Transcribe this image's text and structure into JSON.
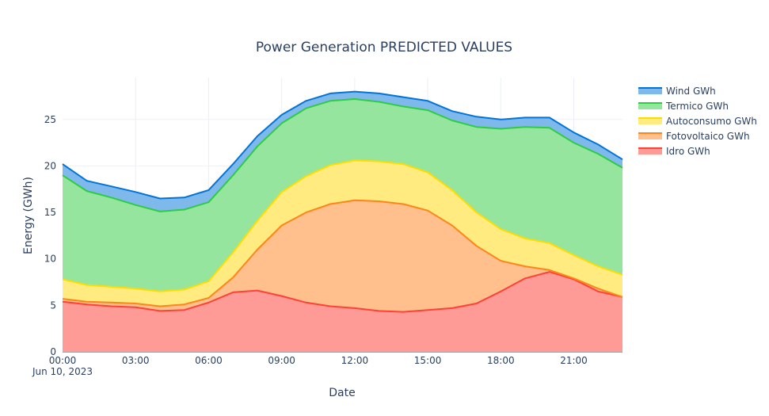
{
  "chart_data": {
    "type": "area",
    "stacked": true,
    "title": "Power Generation PREDICTED VALUES",
    "xlabel": "Date",
    "ylabel": "Energy (GWh)",
    "x_date_label": "Jun 10, 2023",
    "x": [
      0,
      1,
      2,
      3,
      4,
      5,
      6,
      7,
      8,
      9,
      10,
      11,
      12,
      13,
      14,
      15,
      16,
      17,
      18,
      19,
      20,
      21,
      22,
      23
    ],
    "x_ticks": [
      {
        "hour": 0,
        "label": "00:00"
      },
      {
        "hour": 3,
        "label": "03:00"
      },
      {
        "hour": 6,
        "label": "06:00"
      },
      {
        "hour": 9,
        "label": "09:00"
      },
      {
        "hour": 12,
        "label": "12:00"
      },
      {
        "hour": 15,
        "label": "15:00"
      },
      {
        "hour": 18,
        "label": "18:00"
      },
      {
        "hour": 21,
        "label": "21:00"
      }
    ],
    "ylim": [
      0,
      29.5
    ],
    "y_ticks": [
      0,
      5,
      10,
      15,
      20,
      25
    ],
    "grid": true,
    "legend_position": "top-right",
    "series": [
      {
        "name": "Idro GWh",
        "line_color": "#ff4136",
        "fill_color": "#ff9b96",
        "values": [
          5.4,
          5.1,
          4.9,
          4.8,
          4.4,
          4.5,
          5.3,
          6.4,
          6.6,
          6.0,
          5.3,
          4.9,
          4.7,
          4.4,
          4.3,
          4.5,
          4.7,
          5.2,
          6.5,
          7.9,
          8.6,
          7.8,
          6.5,
          5.9
        ]
      },
      {
        "name": "Fotovoltaico GWh",
        "line_color": "#ff851b",
        "fill_color": "#ffc08d",
        "values": [
          0.3,
          0.3,
          0.4,
          0.4,
          0.5,
          0.6,
          0.5,
          1.6,
          4.4,
          7.6,
          9.7,
          11.0,
          11.6,
          11.8,
          11.6,
          10.7,
          8.9,
          6.2,
          3.3,
          1.3,
          0.2,
          0.1,
          0.3,
          0.0
        ]
      },
      {
        "name": "Autoconsumo GWh",
        "line_color": "#ffdc00",
        "fill_color": "#ffeb7f",
        "values": [
          2.1,
          1.8,
          1.7,
          1.6,
          1.6,
          1.6,
          1.8,
          2.7,
          3.1,
          3.6,
          3.9,
          4.2,
          4.3,
          4.3,
          4.3,
          4.1,
          3.8,
          3.6,
          3.4,
          3.0,
          2.9,
          2.5,
          2.4,
          2.4
        ]
      },
      {
        "name": "Termico GWh",
        "line_color": "#2ecc40",
        "fill_color": "#96e59f",
        "values": [
          11.2,
          10.1,
          9.6,
          9.0,
          8.6,
          8.6,
          8.5,
          8.3,
          8.0,
          7.4,
          7.3,
          6.9,
          6.6,
          6.4,
          6.2,
          6.7,
          7.5,
          9.2,
          10.8,
          12.0,
          12.4,
          12.1,
          12.1,
          11.5
        ]
      },
      {
        "name": "Wind GWh",
        "line_color": "#0074d9",
        "fill_color": "#7fb9ec",
        "values": [
          1.2,
          1.1,
          1.2,
          1.4,
          1.4,
          1.3,
          1.3,
          1.2,
          1.1,
          0.9,
          0.8,
          0.8,
          0.8,
          0.9,
          1.0,
          1.0,
          1.0,
          1.1,
          1.0,
          1.0,
          1.1,
          1.1,
          1.0,
          0.9
        ]
      }
    ]
  }
}
